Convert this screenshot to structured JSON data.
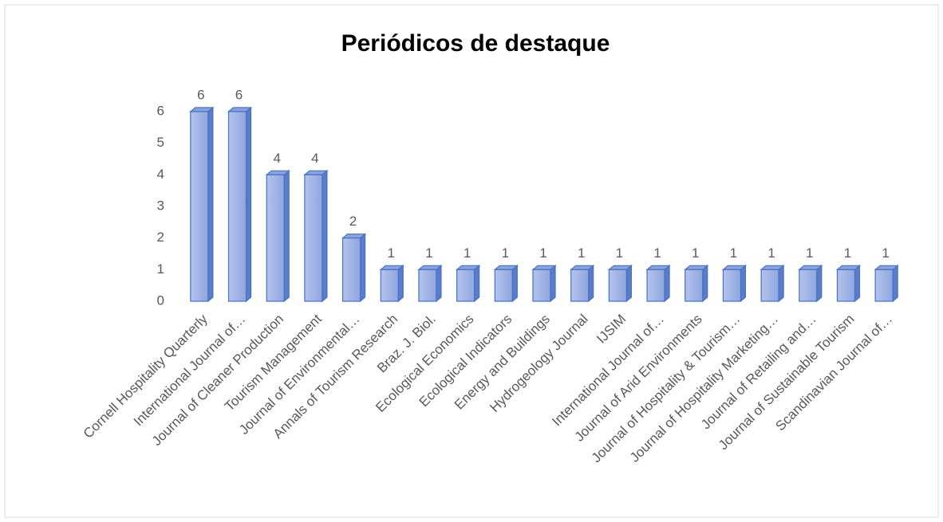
{
  "chart_data": {
    "type": "bar3d",
    "title": "Periódicos de destaque",
    "categories": [
      "Cornell Hospitality Quarterly",
      "International Journal of…",
      "Journal of Cleaner Production",
      "Tourism Management",
      "Journal of Environmental…",
      "Annals of Tourism Research",
      "Braz. J. Biol.",
      "Ecological Economics",
      "Ecological Indicators",
      "Energy and Buildings",
      "Hydrogeology Journal",
      "IJSIM",
      "International Journal of…",
      "Journal of Arid Environments",
      "Journal of Hospitality & Tourism…",
      "Journal of Hospitality Marketing…",
      "Journal of Retailing and…",
      "Journal of Sustainable Tourism",
      "Scandinavian Journal of…"
    ],
    "values": [
      6,
      6,
      4,
      4,
      2,
      1,
      1,
      1,
      1,
      1,
      1,
      1,
      1,
      1,
      1,
      1,
      1,
      1,
      1
    ],
    "color": "#9fb2e4",
    "ylim": [
      0,
      6
    ],
    "yticks": [
      0,
      1,
      2,
      3,
      4,
      5,
      6
    ],
    "grid": false
  }
}
